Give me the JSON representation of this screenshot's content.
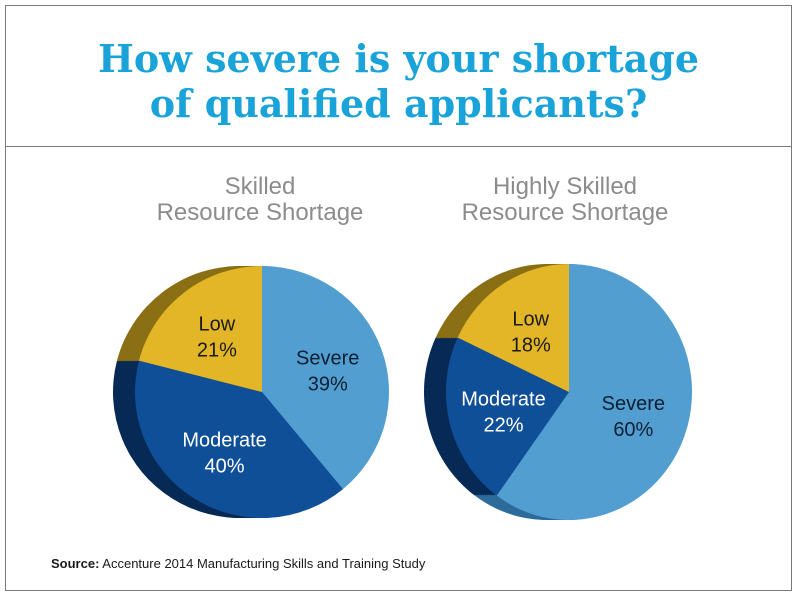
{
  "title": {
    "line1": "How severe is your shortage",
    "line2": "of qualified applicants?"
  },
  "colors": {
    "title": "#19a3d9",
    "severe": "#529ed0",
    "moderate": "#0f4f98",
    "low": "#e2b626",
    "depth_severe": "#2c6c9a",
    "depth_moderate": "#062a55",
    "depth_low": "#8a6f14"
  },
  "chart_data": [
    {
      "type": "pie",
      "title_line1": "Skilled",
      "title_line2": "Resource Shortage",
      "slices": [
        {
          "label": "Severe",
          "value": 39,
          "value_text": "39%"
        },
        {
          "label": "Moderate",
          "value": 40,
          "value_text": "40%"
        },
        {
          "label": "Low",
          "value": 21,
          "value_text": "21%"
        }
      ]
    },
    {
      "type": "pie",
      "title_line1": "Highly Skilled",
      "title_line2": "Resource Shortage",
      "slices": [
        {
          "label": "Severe",
          "value": 60,
          "value_text": "60%"
        },
        {
          "label": "Moderate",
          "value": 22,
          "value_text": "22%"
        },
        {
          "label": "Low",
          "value": 18,
          "value_text": "18%"
        }
      ]
    }
  ],
  "source": {
    "prefix": "Source:",
    "text": " Accenture 2014 Manufacturing Skills and Training Study"
  }
}
